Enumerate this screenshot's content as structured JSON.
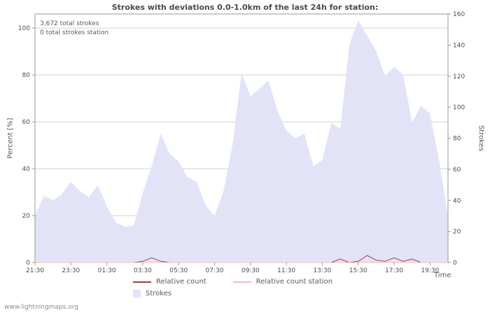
{
  "title": "Strokes with deviations 0.0-1.0km of the last 24h for station:",
  "annotations": {
    "total_strokes": "3,672 total strokes",
    "total_station": "0 total strokes station"
  },
  "axis_labels": {
    "left": "Percent  [%]",
    "right": "Strokes",
    "x": "Time"
  },
  "legend": {
    "relative_count": "Relative count",
    "relative_count_station": "Relative count station",
    "strokes": "Strokes"
  },
  "watermark": "www.lightningmaps.org",
  "colors": {
    "area_fill": "#e3e3f8",
    "relative_count": "#a83c3c",
    "relative_count_station": "#f0bcbc",
    "grid": "#d2d2d2",
    "axis": "#9a9a9a",
    "text": "#4d4d4d"
  },
  "chart_data": {
    "type": "area",
    "title": "Strokes with deviations 0.0-1.0km of the last 24h for station:",
    "x": [
      "21:30",
      "22:00",
      "22:30",
      "23:00",
      "23:30",
      "00:00",
      "00:30",
      "01:00",
      "01:30",
      "02:00",
      "02:30",
      "03:00",
      "03:30",
      "04:00",
      "04:30",
      "05:00",
      "05:30",
      "06:00",
      "06:30",
      "07:00",
      "07:30",
      "08:00",
      "08:30",
      "09:00",
      "09:30",
      "10:00",
      "10:30",
      "11:00",
      "11:30",
      "12:00",
      "12:30",
      "13:00",
      "13:30",
      "14:00",
      "14:30",
      "15:00",
      "15:30",
      "16:00",
      "16:30",
      "17:00",
      "17:30",
      "18:00",
      "18:30",
      "19:00",
      "19:30",
      "20:00",
      "20:30"
    ],
    "x_ticks": [
      "21:30",
      "23:30",
      "01:30",
      "03:30",
      "05:30",
      "07:30",
      "09:30",
      "11:30",
      "13:30",
      "15:30",
      "17:30",
      "19:30"
    ],
    "xlabel": "Time",
    "left_axis": {
      "label": "Percent [%]",
      "ticks": [
        0,
        20,
        40,
        60,
        80,
        100
      ],
      "max": 106
    },
    "right_axis": {
      "label": "Strokes",
      "ticks": [
        0,
        20,
        40,
        60,
        80,
        100,
        120,
        140,
        160
      ],
      "max": 160
    },
    "series": [
      {
        "name": "Strokes",
        "type": "area",
        "axis": "right",
        "color": "#e3e3f8",
        "values": [
          30,
          43,
          40,
          44,
          52,
          46,
          42,
          50,
          36,
          26,
          23,
          24,
          45,
          62,
          83,
          70,
          65,
          55,
          52,
          37,
          30,
          46,
          76,
          122,
          107,
          112,
          117,
          98,
          85,
          80,
          83,
          62,
          66,
          90,
          86,
          140,
          156,
          146,
          136,
          120,
          126,
          121,
          90,
          101,
          96,
          66,
          30
        ]
      },
      {
        "name": "Relative count",
        "type": "line",
        "axis": "left",
        "color": "#a83c3c",
        "values": [
          0,
          0,
          0,
          0,
          0,
          0,
          0,
          0,
          0,
          0,
          0,
          0,
          0.5,
          2,
          0.5,
          0,
          0,
          0,
          0,
          0,
          0,
          0,
          0,
          0,
          0,
          0,
          0,
          0,
          0,
          0,
          0,
          0,
          0,
          0,
          1.5,
          0,
          0.5,
          3,
          1,
          0.5,
          2,
          0.5,
          1.5,
          0,
          0,
          0,
          0
        ]
      },
      {
        "name": "Relative count station",
        "type": "line",
        "axis": "left",
        "color": "#f0bcbc",
        "values": [
          0,
          0,
          0,
          0,
          0,
          0,
          0,
          0,
          0,
          0,
          0,
          0,
          0,
          0,
          0,
          0,
          0,
          0,
          0,
          0,
          0,
          0,
          0,
          0,
          0,
          0,
          0,
          0,
          0,
          0,
          0,
          0,
          0,
          0,
          0,
          0,
          0,
          0,
          0,
          0,
          0,
          0,
          0,
          0,
          0,
          0,
          0
        ]
      }
    ],
    "totals": {
      "total_strokes": 3672,
      "total_strokes_station": 0
    },
    "grid": true,
    "legend_position": "bottom"
  }
}
